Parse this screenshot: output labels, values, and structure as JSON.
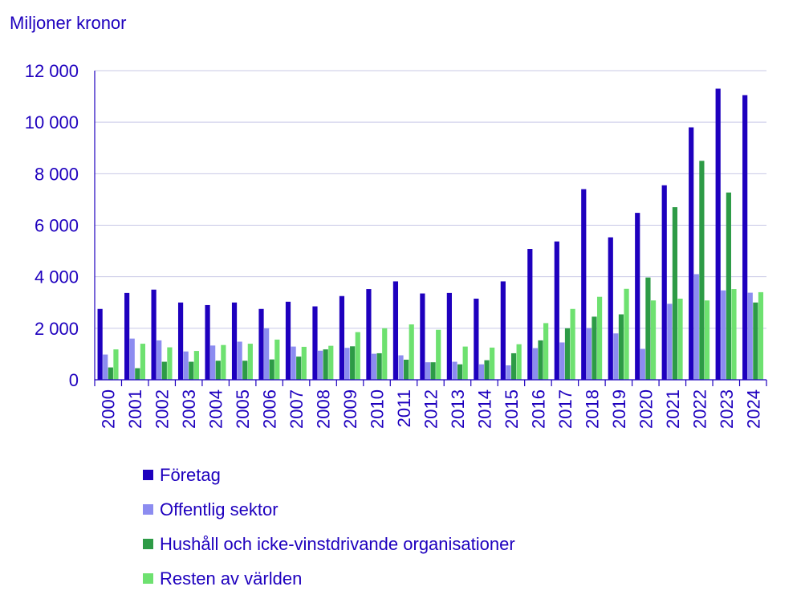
{
  "chart_data": {
    "type": "bar",
    "ylabel": "Miljoner kronor",
    "ylim": [
      0,
      12000
    ],
    "yticks": [
      0,
      2000,
      4000,
      6000,
      8000,
      10000,
      12000
    ],
    "ytick_labels": [
      "0",
      "2 000",
      "4 000",
      "6 000",
      "8 000",
      "10 000",
      "12 000"
    ],
    "categories": [
      "2000",
      "2001",
      "2002",
      "2003",
      "2004",
      "2005",
      "2006",
      "2007",
      "2008",
      "2009",
      "2010",
      "2011",
      "2012",
      "2013",
      "2014",
      "2015",
      "2016",
      "2017",
      "2018",
      "2019",
      "2020",
      "2021",
      "2022",
      "2023",
      "2024"
    ],
    "grid": true,
    "legend_position": "bottom",
    "series": [
      {
        "name": "Företag",
        "color": "#1e00be",
        "values": [
          2750,
          3370,
          3500,
          3000,
          2900,
          3000,
          2750,
          3030,
          2850,
          3250,
          3520,
          3820,
          3350,
          3370,
          3150,
          3820,
          5080,
          5370,
          7400,
          5530,
          6480,
          7550,
          9800,
          11300,
          11050
        ]
      },
      {
        "name": "Offentlig sektor",
        "color": "#8c8cf0",
        "values": [
          980,
          1600,
          1530,
          1100,
          1330,
          1480,
          2000,
          1290,
          1130,
          1240,
          1010,
          950,
          680,
          700,
          600,
          560,
          1230,
          1450,
          2010,
          1800,
          1200,
          2950,
          4100,
          3470,
          3380
        ]
      },
      {
        "name": "Hushåll och icke-vinstdrivande organisationer",
        "color": "#2d9b46",
        "values": [
          480,
          450,
          700,
          700,
          740,
          740,
          790,
          900,
          1180,
          1300,
          1030,
          780,
          680,
          600,
          760,
          1030,
          1530,
          2000,
          2450,
          2540,
          3970,
          6700,
          8500,
          7270,
          3000
        ]
      },
      {
        "name": "Resten av världen",
        "color": "#6ee170",
        "values": [
          1180,
          1400,
          1260,
          1120,
          1350,
          1400,
          1560,
          1280,
          1320,
          1850,
          2000,
          2150,
          1940,
          1290,
          1250,
          1380,
          2200,
          2750,
          3220,
          3530,
          3080,
          3150,
          3080,
          3520,
          3400
        ]
      }
    ]
  }
}
